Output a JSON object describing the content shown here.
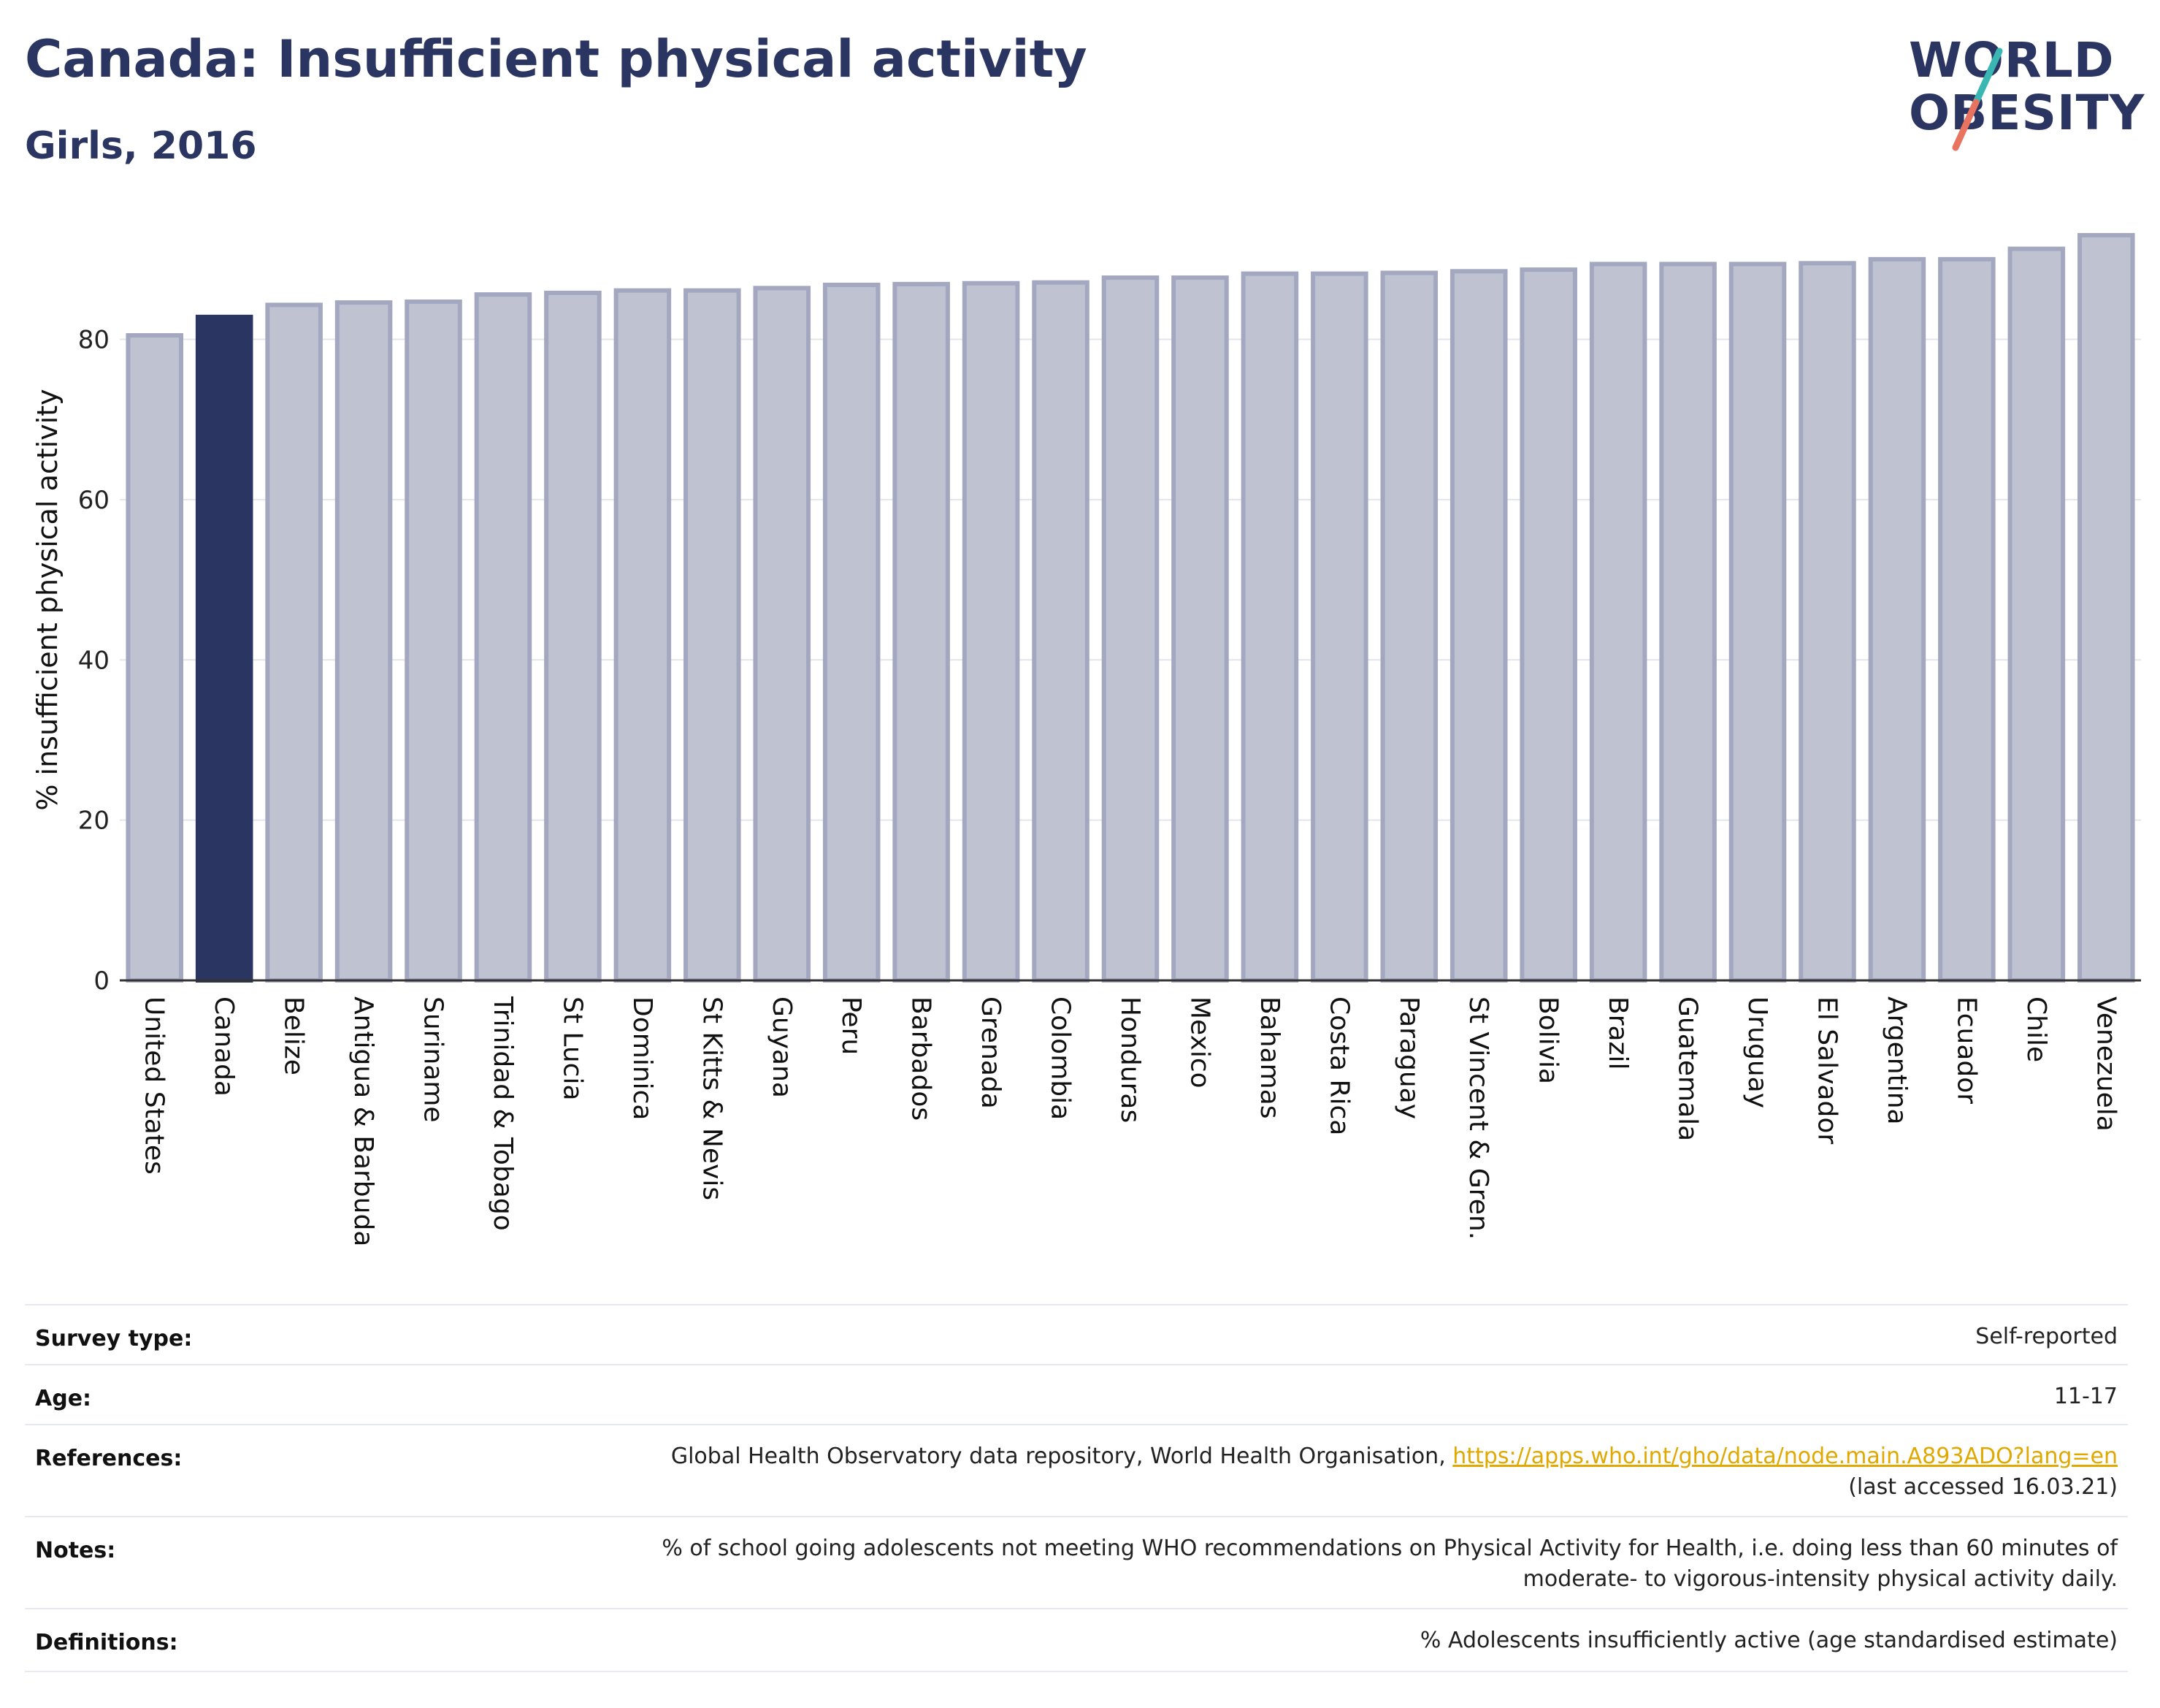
{
  "header": {
    "title": "Canada: Insufficient physical activity",
    "subtitle": "Girls, 2016"
  },
  "logo": {
    "line1": "WORLD",
    "line2": "OBESITY"
  },
  "colors": {
    "title": "#2b3561",
    "bar_default": "#bfc2d1",
    "bar_default_stroke": "#a3a8c0",
    "bar_highlight": "#2b3561",
    "logo_teal": "#3ab7b3",
    "logo_coral": "#e8735f",
    "link": "#e0a800"
  },
  "chart_data": {
    "type": "bar",
    "ylabel": "% insufficient physical activity",
    "ylim": [
      0,
      95
    ],
    "yticks": [
      0,
      20,
      40,
      60,
      80
    ],
    "grid": true,
    "highlight": "Canada",
    "categories": [
      "United States",
      "Canada",
      "Belize",
      "Antigua & Barbuda",
      "Suriname",
      "Trinidad & Tobago",
      "St Lucia",
      "Dominica",
      "St Kitts & Nevis",
      "Guyana",
      "Peru",
      "Barbados",
      "Grenada",
      "Colombia",
      "Honduras",
      "Mexico",
      "Bahamas",
      "Costa Rica",
      "Paraguay",
      "St Vincent & Gren.",
      "Bolivia",
      "Brazil",
      "Guatemala",
      "Uruguay",
      "El Salvador",
      "Argentina",
      "Ecuador",
      "Chile",
      "Venezuela"
    ],
    "values": [
      80.5,
      82.8,
      84.3,
      84.6,
      84.7,
      85.6,
      85.8,
      86.1,
      86.1,
      86.4,
      86.8,
      86.9,
      87.0,
      87.1,
      87.7,
      87.7,
      88.2,
      88.2,
      88.3,
      88.5,
      88.7,
      89.4,
      89.4,
      89.4,
      89.5,
      90.0,
      90.0,
      91.3,
      93.0
    ]
  },
  "meta": {
    "rows": [
      {
        "label": "Survey type:",
        "value": "Self-reported"
      },
      {
        "label": "Age:",
        "value": "11-17"
      },
      {
        "label": "References:",
        "value_prefix": "Global Health Observatory data repository, World Health Organisation, ",
        "link": "https://apps.who.int/gho/data/node.main.A893ADO?lang=en",
        "value_line2": "(last accessed 16.03.21)"
      },
      {
        "label": "Notes:",
        "value": "% of school going adolescents not meeting WHO recommendations on Physical Activity for Health, i.e. doing less than 60 minutes of",
        "value_line2": "moderate- to vigorous-intensity physical activity daily."
      },
      {
        "label": "Definitions:",
        "value": "% Adolescents insufficiently active (age standardised estimate)"
      }
    ]
  }
}
